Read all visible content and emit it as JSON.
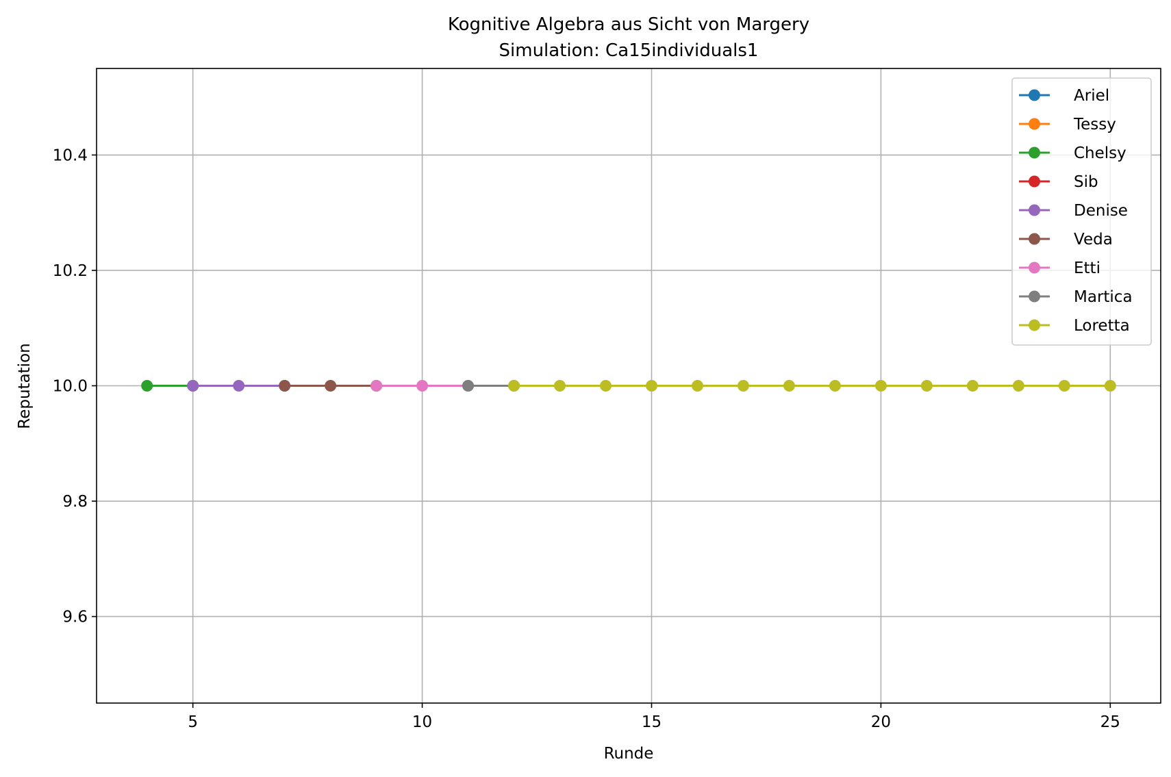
{
  "chart_data": {
    "type": "line",
    "title": "Kognitive Algebra aus Sicht von Margery",
    "subtitle": "Simulation: Ca15individuals1",
    "xlabel": "Runde",
    "ylabel": "Reputation",
    "xlim": [
      2.9,
      26.1
    ],
    "ylim": [
      9.45,
      10.55
    ],
    "xticks": [
      5,
      10,
      15,
      20,
      25
    ],
    "yticks": [
      9.6,
      9.8,
      10.0,
      10.2,
      10.4
    ],
    "xtick_labels": [
      "5",
      "10",
      "15",
      "20",
      "25"
    ],
    "ytick_labels": [
      "9.6",
      "9.8",
      "10.0",
      "10.2",
      "10.4"
    ],
    "grid": true,
    "legend_position": "top-right",
    "series": [
      {
        "name": "Ariel",
        "color": "#1f77b4",
        "x": [],
        "y": []
      },
      {
        "name": "Tessy",
        "color": "#ff7f0e",
        "x": [],
        "y": []
      },
      {
        "name": "Chelsy",
        "color": "#2ca02c",
        "x": [
          4,
          5
        ],
        "y": [
          10.0,
          10.0
        ]
      },
      {
        "name": "Sib",
        "color": "#d62728",
        "x": [],
        "y": []
      },
      {
        "name": "Denise",
        "color": "#9467bd",
        "x": [
          5,
          6,
          7
        ],
        "y": [
          10.0,
          10.0,
          10.0
        ]
      },
      {
        "name": "Veda",
        "color": "#8c564b",
        "x": [
          7,
          8,
          9
        ],
        "y": [
          10.0,
          10.0,
          10.0
        ]
      },
      {
        "name": "Etti",
        "color": "#e377c2",
        "x": [
          9,
          10,
          11
        ],
        "y": [
          10.0,
          10.0,
          10.0
        ]
      },
      {
        "name": "Martica",
        "color": "#7f7f7f",
        "x": [
          11,
          12
        ],
        "y": [
          10.0,
          10.0
        ]
      },
      {
        "name": "Loretta",
        "color": "#bcbd22",
        "x": [
          12,
          13,
          14,
          15,
          16,
          17,
          18,
          19,
          20,
          21,
          22,
          23,
          24,
          25
        ],
        "y": [
          10.0,
          10.0,
          10.0,
          10.0,
          10.0,
          10.0,
          10.0,
          10.0,
          10.0,
          10.0,
          10.0,
          10.0,
          10.0,
          10.0
        ]
      }
    ]
  }
}
